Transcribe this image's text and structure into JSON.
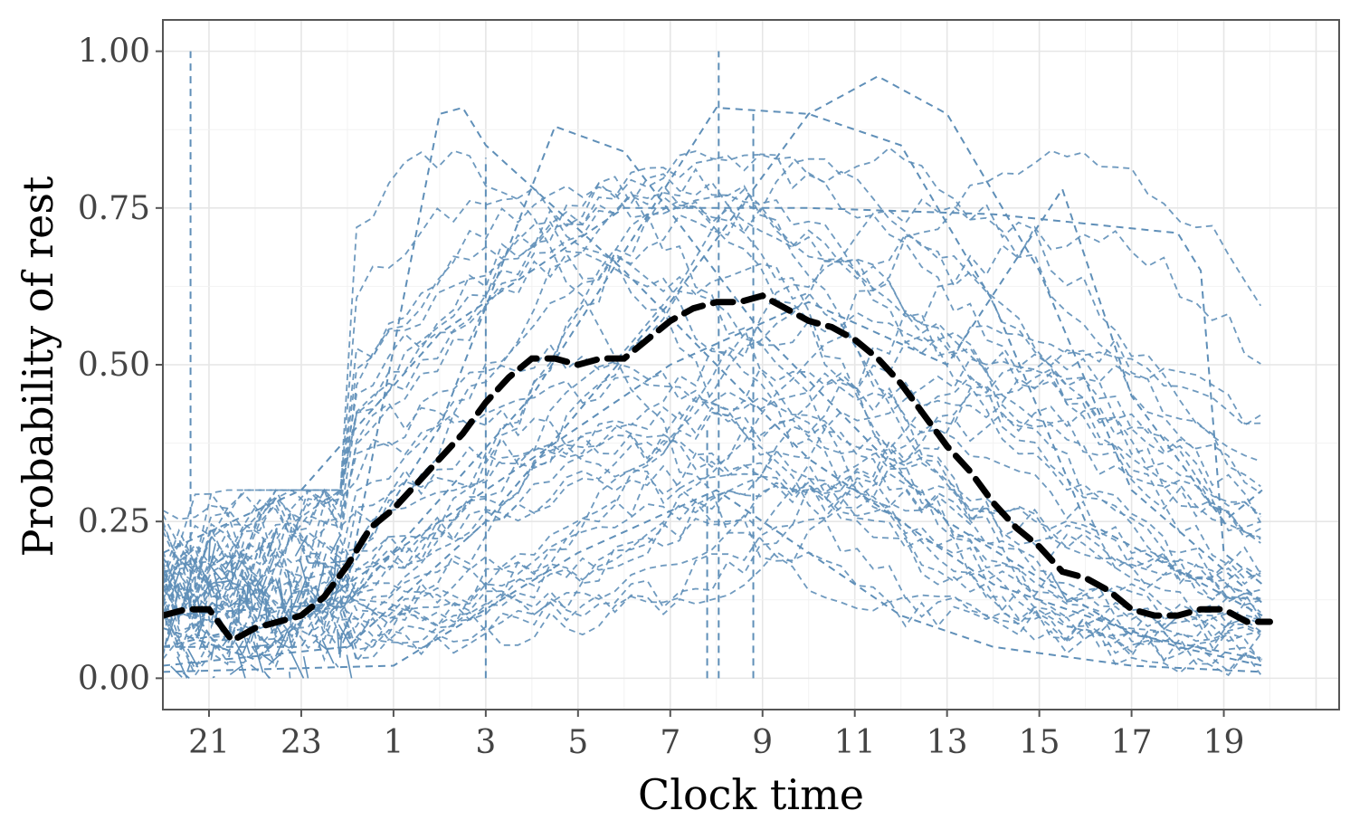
{
  "chart_data": {
    "type": "line",
    "title": "",
    "xlabel": "Clock time",
    "ylabel": "Probability of rest",
    "x_tick_labels": [
      "21",
      "23",
      "1",
      "3",
      "5",
      "7",
      "9",
      "11",
      "13",
      "15",
      "17",
      "19"
    ],
    "y_tick_labels": [
      "0.00",
      "0.25",
      "0.50",
      "0.75",
      "1.00"
    ],
    "y_ticks": [
      0,
      0.25,
      0.5,
      0.75,
      1.0
    ],
    "xlim_hours_from_20": [
      0,
      25.5
    ],
    "ylim": [
      -0.05,
      1.05
    ],
    "grid": true,
    "legend": "none",
    "mean_series": {
      "name": "",
      "color": "#000000",
      "style": "dashed-thick",
      "points": [
        [
          "20:00",
          0.1
        ],
        [
          "20:30",
          0.11
        ],
        [
          "21:00",
          0.11
        ],
        [
          "21:30",
          0.06
        ],
        [
          "22:00",
          0.08
        ],
        [
          "22:30",
          0.09
        ],
        [
          "23:00",
          0.1
        ],
        [
          "23:30",
          0.13
        ],
        [
          "00:00",
          0.18
        ],
        [
          "00:30",
          0.24
        ],
        [
          "01:00",
          0.27
        ],
        [
          "01:30",
          0.31
        ],
        [
          "02:00",
          0.35
        ],
        [
          "02:30",
          0.39
        ],
        [
          "03:00",
          0.44
        ],
        [
          "03:30",
          0.48
        ],
        [
          "04:00",
          0.51
        ],
        [
          "04:30",
          0.51
        ],
        [
          "05:00",
          0.5
        ],
        [
          "05:30",
          0.51
        ],
        [
          "06:00",
          0.51
        ],
        [
          "06:30",
          0.54
        ],
        [
          "07:00",
          0.57
        ],
        [
          "07:30",
          0.59
        ],
        [
          "08:00",
          0.6
        ],
        [
          "08:30",
          0.6
        ],
        [
          "09:00",
          0.61
        ],
        [
          "09:30",
          0.59
        ],
        [
          "10:00",
          0.57
        ],
        [
          "10:30",
          0.56
        ],
        [
          "11:00",
          0.54
        ],
        [
          "11:30",
          0.51
        ],
        [
          "12:00",
          0.47
        ],
        [
          "12:30",
          0.42
        ],
        [
          "13:00",
          0.37
        ],
        [
          "13:30",
          0.33
        ],
        [
          "14:00",
          0.28
        ],
        [
          "14:30",
          0.24
        ],
        [
          "15:00",
          0.21
        ],
        [
          "15:30",
          0.17
        ],
        [
          "16:00",
          0.16
        ],
        [
          "16:30",
          0.14
        ],
        [
          "17:00",
          0.11
        ],
        [
          "17:30",
          0.1
        ],
        [
          "18:00",
          0.1
        ],
        [
          "18:30",
          0.11
        ],
        [
          "19:00",
          0.11
        ],
        [
          "19:30",
          0.09
        ],
        [
          "20:00",
          0.09
        ]
      ]
    },
    "individual_series": {
      "color": "#5f8fb8",
      "style": "dashed",
      "count_approx": 45,
      "examples": [
        {
          "points": [
            [
              "20:00",
              0.08
            ],
            [
              "22:00",
              0.03
            ],
            [
              "00:00",
              0.15
            ],
            [
              "02:00",
              0.9
            ],
            [
              "02:30",
              0.91
            ],
            [
              "03:00",
              0.85
            ],
            [
              "06:00",
              0.65
            ],
            [
              "10:00",
              0.35
            ],
            [
              "14:00",
              0.15
            ],
            [
              "18:00",
              0.05
            ],
            [
              "19:50",
              0.02
            ]
          ]
        },
        {
          "points": [
            [
              "20:00",
              0.05
            ],
            [
              "23:00",
              0.05
            ],
            [
              "02:00",
              0.4
            ],
            [
              "04:30",
              0.88
            ],
            [
              "06:00",
              0.84
            ],
            [
              "09:00",
              0.55
            ],
            [
              "13:00",
              0.25
            ],
            [
              "17:00",
              0.07
            ],
            [
              "19:50",
              0.03
            ]
          ]
        },
        {
          "points": [
            [
              "20:00",
              0.1
            ],
            [
              "00:00",
              0.12
            ],
            [
              "04:00",
              0.45
            ],
            [
              "08:00",
              0.91
            ],
            [
              "10:00",
              0.9
            ],
            [
              "12:00",
              0.85
            ],
            [
              "14:00",
              0.6
            ],
            [
              "16:00",
              0.25
            ],
            [
              "19:50",
              0.1
            ]
          ]
        },
        {
          "points": [
            [
              "20:00",
              0.02
            ],
            [
              "00:00",
              0.05
            ],
            [
              "03:00",
              0.25
            ],
            [
              "07:00",
              0.6
            ],
            [
              "10:00",
              0.9
            ],
            [
              "11:30",
              0.96
            ],
            [
              "13:00",
              0.9
            ],
            [
              "15:00",
              0.65
            ],
            [
              "17:00",
              0.3
            ],
            [
              "19:50",
              0.12
            ]
          ]
        },
        {
          "points": [
            [
              "20:00",
              0.2
            ],
            [
              "23:00",
              0.3
            ],
            [
              "02:00",
              0.55
            ],
            [
              "06:00",
              0.75
            ],
            [
              "10:00",
              0.75
            ],
            [
              "14:00",
              0.74
            ],
            [
              "18:00",
              0.71
            ],
            [
              "18:30",
              0.65
            ],
            [
              "19:00",
              0.2
            ],
            [
              "19:50",
              0.15
            ]
          ]
        },
        {
          "points": [
            [
              "20:00",
              0.05
            ],
            [
              "23:00",
              0.1
            ],
            [
              "03:00",
              0.3
            ],
            [
              "07:00",
              0.5
            ],
            [
              "10:00",
              0.6
            ],
            [
              "13:00",
              0.5
            ],
            [
              "15:30",
              0.78
            ],
            [
              "17:00",
              0.45
            ],
            [
              "19:00",
              0.25
            ],
            [
              "19:50",
              0.3
            ]
          ]
        },
        {
          "points": [
            [
              "20:00",
              0.01
            ],
            [
              "01:00",
              0.02
            ],
            [
              "05:00",
              0.2
            ],
            [
              "08:00",
              0.3
            ],
            [
              "12:00",
              0.1
            ],
            [
              "14:00",
              0.05
            ],
            [
              "17:00",
              0.02
            ],
            [
              "19:50",
              0.01
            ]
          ]
        }
      ]
    }
  }
}
